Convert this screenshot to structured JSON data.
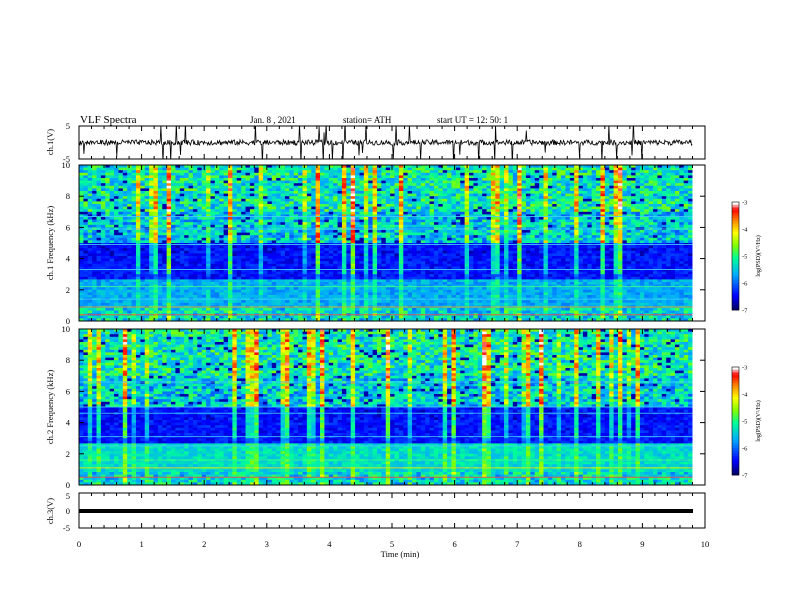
{
  "header": {
    "title": "VLF Spectra",
    "date": "Jan. 8 , 2021",
    "station": "station= ATH",
    "start_time": "start UT = 12: 50: 1"
  },
  "chart_data": [
    {
      "type": "line",
      "id": "ch1-waveform",
      "ylabel": "ch.1(V)",
      "ylim": [
        -5,
        5
      ],
      "y_ticks": [
        "5",
        "-5"
      ],
      "xlim": [
        0,
        10
      ],
      "data_end_min": 9.8,
      "baseline": 0,
      "color": "#000000"
    },
    {
      "type": "heatmap",
      "id": "ch1-spectrogram",
      "ylabel": "ch.1 Frequency (kHz)",
      "ylim": [
        0,
        10
      ],
      "y_ticks": [
        "0",
        "2",
        "4",
        "6",
        "8",
        "10"
      ],
      "xlim": [
        0,
        10
      ],
      "data_end_min": 9.8,
      "colorbar": {
        "label": "log(PSD)(V²/Hz)",
        "range": [
          -7,
          -3
        ],
        "ticks": [
          "-3",
          "-4",
          "-5",
          "-6",
          "-7"
        ],
        "colors": [
          "#000080",
          "#0000ff",
          "#00b0ff",
          "#00ff80",
          "#80ff00",
          "#ffff00",
          "#ff8000",
          "#ff0000",
          "#ffffff"
        ]
      }
    },
    {
      "type": "heatmap",
      "id": "ch2-spectrogram",
      "ylabel": "ch.2 Frequency (kHz)",
      "ylim": [
        0,
        10
      ],
      "y_ticks": [
        "0",
        "2",
        "4",
        "6",
        "8",
        "10"
      ],
      "xlim": [
        0,
        10
      ],
      "data_end_min": 9.8,
      "colorbar": {
        "label": "log(PSD)(V²/Hz)",
        "range": [
          -7,
          -3
        ],
        "ticks": [
          "-3",
          "-4",
          "-5",
          "-6",
          "-7"
        ],
        "colors": [
          "#000080",
          "#0000ff",
          "#00b0ff",
          "#00ff80",
          "#80ff00",
          "#ffff00",
          "#ff8000",
          "#ff0000",
          "#ffffff"
        ]
      }
    },
    {
      "type": "line",
      "id": "ch3-waveform",
      "ylabel": "ch.3(V)",
      "ylim": [
        -5,
        5
      ],
      "y_ticks": [
        "5",
        "0",
        "-5"
      ],
      "xlim": [
        0,
        10
      ],
      "data_end_min": 9.8,
      "baseline": 0,
      "color": "#000000"
    }
  ],
  "x_axis": {
    "label": "Time (min)",
    "ticks": [
      "0",
      "1",
      "2",
      "3",
      "4",
      "5",
      "6",
      "7",
      "8",
      "9",
      "10"
    ]
  }
}
